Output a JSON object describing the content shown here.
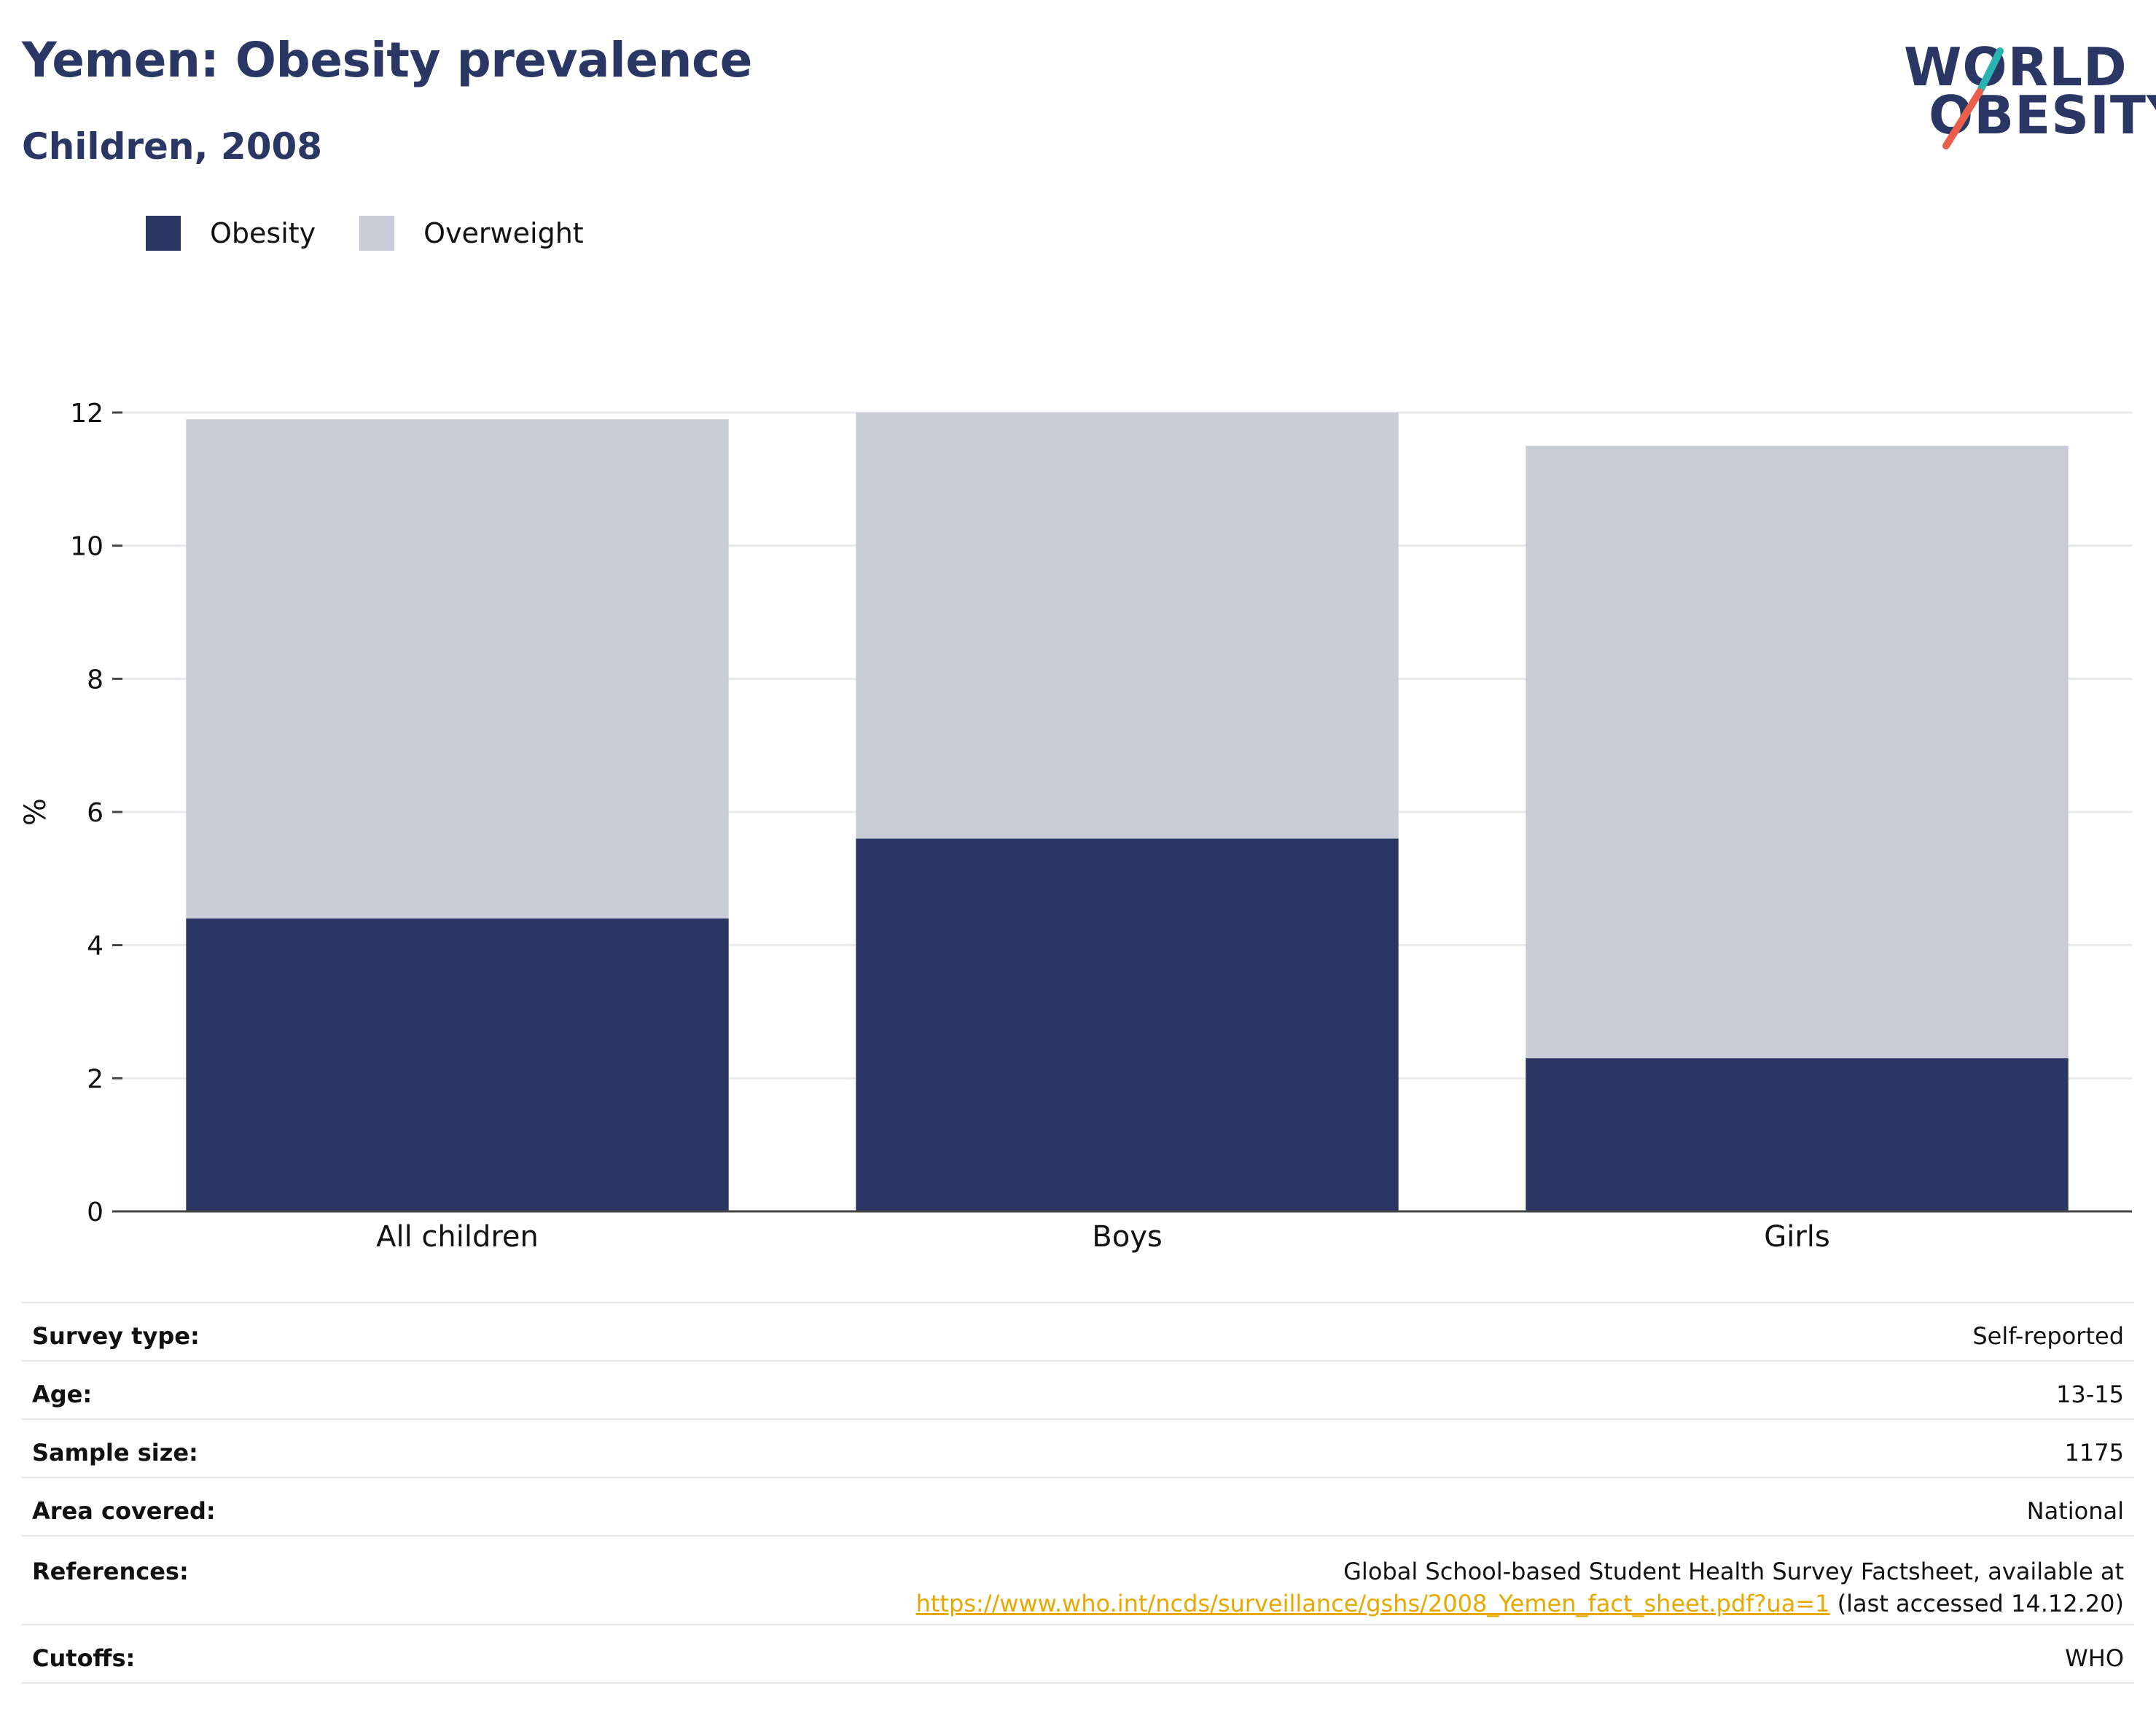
{
  "header": {
    "title": "Yemen: Obesity prevalence",
    "subtitle": "Children, 2008"
  },
  "logo": {
    "line1": "WORLD",
    "line2": "OBESITY",
    "colors": {
      "text": "#2a3663",
      "teal": "#2bb3b1",
      "coral": "#e8604c"
    }
  },
  "legend": {
    "items": [
      {
        "label": "Obesity",
        "color": "#2a3663"
      },
      {
        "label": "Overweight",
        "color": "#c9cbd7"
      }
    ]
  },
  "chart_data": {
    "type": "bar",
    "stacked": true,
    "categories": [
      "All children",
      "Boys",
      "Girls"
    ],
    "series": [
      {
        "name": "Obesity",
        "color": "#2a3663",
        "values": [
          4.4,
          5.6,
          2.3
        ]
      },
      {
        "name": "Overweight",
        "color": "#c9cbd7",
        "values": [
          7.5,
          6.4,
          9.2
        ]
      }
    ],
    "ylabel": "%",
    "ylim": [
      0,
      12
    ],
    "yticks": [
      0,
      2,
      4,
      6,
      8,
      10,
      12
    ],
    "grid": true,
    "legend_position": "top-left"
  },
  "info": {
    "survey_type": {
      "label": "Survey type:",
      "value": "Self-reported"
    },
    "age": {
      "label": "Age:",
      "value": "13-15"
    },
    "sample_size": {
      "label": "Sample size:",
      "value": "1175"
    },
    "area_covered": {
      "label": "Area covered:",
      "value": "National"
    },
    "references": {
      "label": "References:",
      "line1": "Global School-based Student Health Survey Factsheet, available at",
      "link": "https://www.who.int/ncds/surveillance/gshs/2008_Yemen_fact_sheet.pdf?ua=1",
      "suffix": " (last accessed 14.12.20)"
    },
    "cutoffs": {
      "label": "Cutoffs:",
      "value": "WHO"
    }
  }
}
